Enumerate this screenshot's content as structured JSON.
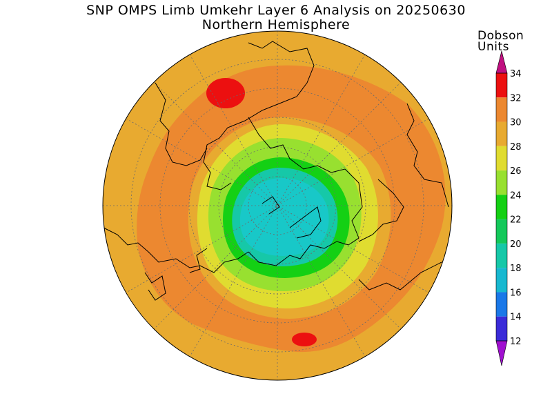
{
  "title": {
    "line1": "SNP OMPS Limb Umkehr Layer 6 Analysis on 20250630",
    "line2": "Northern Hemisphere"
  },
  "colorbar": {
    "units_line1": "Dobson",
    "units_line2": "Units",
    "levels": [
      12,
      14,
      16,
      18,
      20,
      22,
      24,
      26,
      28,
      30,
      32,
      34
    ],
    "colors": [
      "#7a10d8",
      "#3a2bd8",
      "#1a78e8",
      "#18b8d0",
      "#16c8a8",
      "#14c85a",
      "#14d014",
      "#98e030",
      "#e0dc30",
      "#e8aa30",
      "#ec8830",
      "#ec1010"
    ],
    "under_color": "#a010d0",
    "over_color": "#c01080"
  },
  "map": {
    "projection": "north polar stereographic",
    "hemisphere": "Northern Hemisphere",
    "background_value_du": 28,
    "max_contour_du": 33,
    "polar_min_du": 19
  }
}
